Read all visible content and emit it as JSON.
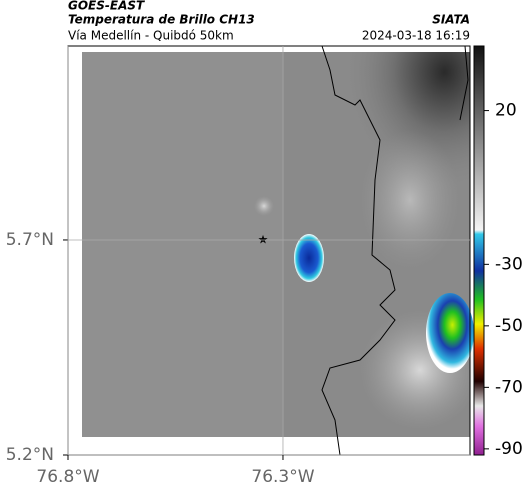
{
  "header": {
    "title": "GOES-EAST",
    "subtitle": "Temperatura de Brillo CH13",
    "source": "SIATA",
    "route": "Vía Medellín - Quibdó 50km",
    "datetime": "2024-03-18 16:19"
  },
  "map": {
    "latlim": [
      5.2,
      6.151
    ],
    "lonlim": [
      -76.8,
      -75.865
    ],
    "latticks": [
      {
        "value": 5.7,
        "label": "5.7°N"
      },
      {
        "value": 5.2,
        "label": "5.2°N"
      }
    ],
    "lonticks": [
      {
        "value": -76.8,
        "label": "76.8°W"
      },
      {
        "value": -76.3,
        "label": "76.3°W"
      }
    ]
  },
  "colorbar": {
    "lim": [
      -92,
      41
    ],
    "ticks": [
      20,
      -30,
      -50,
      -70,
      -90
    ]
  }
}
